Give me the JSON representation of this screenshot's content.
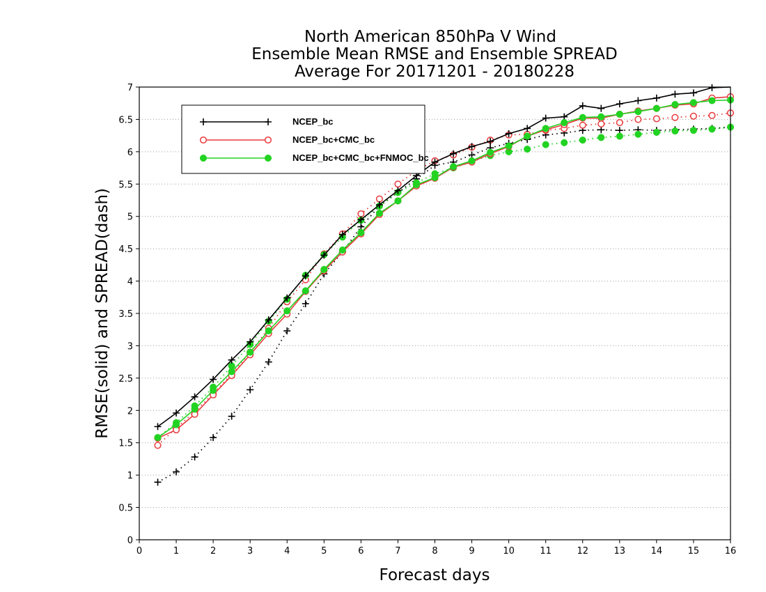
{
  "chart_data": {
    "type": "line",
    "title": [
      "North American 850hPa V Wind",
      "Ensemble Mean RMSE and Ensemble SPREAD",
      "Average For 20171201 - 20180228"
    ],
    "xlabel": "Forecast days",
    "ylabel": "RMSE(solid) and SPREAD(dash)",
    "xlim": [
      0,
      16
    ],
    "ylim": [
      0,
      7
    ],
    "xticks": [
      0,
      1,
      2,
      3,
      4,
      5,
      6,
      7,
      8,
      9,
      10,
      11,
      12,
      13,
      14,
      15,
      16
    ],
    "yticks": [
      0,
      0.5,
      1,
      1.5,
      2,
      2.5,
      3,
      3.5,
      4,
      4.5,
      5,
      5.5,
      6,
      6.5,
      7
    ],
    "grid": "horizontal dotted",
    "legend_position": "top-left",
    "x": [
      0.5,
      1,
      1.5,
      2,
      2.5,
      3,
      3.5,
      4,
      4.5,
      5,
      5.5,
      6,
      6.5,
      7,
      7.5,
      8,
      8.5,
      9,
      9.5,
      10,
      10.5,
      11,
      11.5,
      12,
      12.5,
      13,
      13.5,
      14,
      14.5,
      15,
      15.5,
      16
    ],
    "series": [
      {
        "name": "NCEP_bc",
        "color": "#000000",
        "marker": "plus",
        "rmse": [
          1.75,
          1.96,
          2.21,
          2.48,
          2.78,
          3.06,
          3.4,
          3.74,
          4.08,
          4.4,
          4.72,
          4.95,
          5.18,
          5.4,
          5.63,
          5.84,
          5.97,
          6.08,
          6.16,
          6.28,
          6.36,
          6.52,
          6.54,
          6.71,
          6.67,
          6.74,
          6.79,
          6.83,
          6.89,
          6.91,
          6.99,
          7.02
        ],
        "spread": [
          0.89,
          1.05,
          1.28,
          1.58,
          1.91,
          2.32,
          2.75,
          3.23,
          3.65,
          4.11,
          4.45,
          4.84,
          5.16,
          5.37,
          5.58,
          5.79,
          5.84,
          5.95,
          6.06,
          6.13,
          6.19,
          6.26,
          6.29,
          6.33,
          6.34,
          6.33,
          6.34,
          6.33,
          6.34,
          6.35,
          6.36,
          6.38
        ]
      },
      {
        "name": "NCEP_bc+CMC_bc",
        "color": "#e8393c",
        "marker": "open-circle",
        "rmse": [
          1.57,
          1.7,
          1.94,
          2.24,
          2.54,
          2.86,
          3.19,
          3.49,
          3.84,
          4.16,
          4.45,
          4.73,
          5.03,
          5.24,
          5.47,
          5.59,
          5.76,
          5.84,
          5.97,
          6.08,
          6.24,
          6.34,
          6.42,
          6.52,
          6.52,
          6.58,
          6.63,
          6.67,
          6.72,
          6.74,
          6.83,
          6.85
        ],
        "spread": [
          1.46,
          1.73,
          1.98,
          2.26,
          2.56,
          2.9,
          3.27,
          3.68,
          4.02,
          4.42,
          4.73,
          5.04,
          5.27,
          5.5,
          5.71,
          5.86,
          5.95,
          6.07,
          6.18,
          6.26,
          6.27,
          6.33,
          6.36,
          6.41,
          6.43,
          6.45,
          6.5,
          6.51,
          6.53,
          6.55,
          6.56,
          6.6
        ]
      },
      {
        "name": "NCEP_bc+CMC_bc+FNMOC_bc",
        "color": "#22d322",
        "marker": "filled-circle",
        "rmse": [
          1.58,
          1.78,
          2.02,
          2.31,
          2.6,
          2.9,
          3.23,
          3.54,
          3.85,
          4.18,
          4.48,
          4.75,
          5.05,
          5.24,
          5.49,
          5.6,
          5.77,
          5.86,
          5.99,
          6.09,
          6.24,
          6.36,
          6.45,
          6.53,
          6.54,
          6.58,
          6.62,
          6.67,
          6.73,
          6.76,
          6.79,
          6.8
        ],
        "spread": [
          1.58,
          1.81,
          2.07,
          2.36,
          2.69,
          3.02,
          3.38,
          3.72,
          4.09,
          4.41,
          4.68,
          4.94,
          5.16,
          5.37,
          5.52,
          5.66,
          5.75,
          5.85,
          5.94,
          6.0,
          6.04,
          6.11,
          6.14,
          6.18,
          6.22,
          6.24,
          6.27,
          6.3,
          6.32,
          6.33,
          6.35,
          6.38
        ]
      }
    ]
  }
}
